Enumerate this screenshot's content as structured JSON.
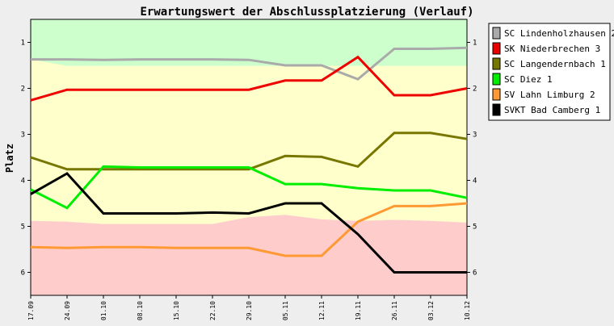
{
  "chart_data": {
    "type": "line",
    "title": "Erwartungswert der Abschlussplatzierung (Verlauf)",
    "ylabel": "Platz",
    "xlabel": "",
    "ylim": [
      0.5,
      6.5
    ],
    "y_inverted": true,
    "yticks": [
      1,
      2,
      3,
      4,
      5,
      6
    ],
    "x": [
      "17.09",
      "24.09",
      "01.10",
      "08.10",
      "15.10",
      "22.10",
      "29.10",
      "05.11",
      "12.11",
      "19.11",
      "26.11",
      "03.12",
      "10.12"
    ],
    "legend_position": "right",
    "background_bands": [
      {
        "color": "#ccffcc",
        "upper": [
          1.37,
          1.51,
          1.51,
          1.51,
          1.51,
          1.51,
          1.51,
          1.51,
          1.51,
          1.51,
          1.51,
          1.51,
          1.51
        ]
      },
      {
        "color": "#ffffcc",
        "upper": [
          4.88,
          4.9,
          4.95,
          4.95,
          4.95,
          4.95,
          4.8,
          4.75,
          4.85,
          4.88,
          4.86,
          4.88,
          4.92
        ]
      },
      {
        "color": "#ffcccc",
        "upper": [
          6.5,
          6.5,
          6.5,
          6.5,
          6.5,
          6.5,
          6.5,
          6.5,
          6.5,
          6.5,
          6.5,
          6.5,
          6.5
        ]
      }
    ],
    "series": [
      {
        "name": "SC Lindenholzhausen 2",
        "color": "#aaaaaa",
        "values": [
          1.37,
          1.37,
          1.38,
          1.37,
          1.37,
          1.37,
          1.38,
          1.5,
          1.5,
          1.8,
          1.14,
          1.14,
          1.12
        ]
      },
      {
        "name": "SK Niederbrechen 3",
        "color": "#ee0000",
        "values": [
          2.26,
          2.03,
          2.03,
          2.03,
          2.03,
          2.03,
          2.03,
          1.83,
          1.83,
          1.32,
          2.15,
          2.15,
          2.0
        ]
      },
      {
        "name": "SC Langendernbach 1",
        "color": "#777700",
        "values": [
          3.5,
          3.76,
          3.76,
          3.76,
          3.76,
          3.76,
          3.76,
          3.47,
          3.49,
          3.7,
          2.97,
          2.97,
          3.1
        ]
      },
      {
        "name": "SC Diez 1",
        "color": "#00ee00",
        "values": [
          4.2,
          4.6,
          3.7,
          3.72,
          3.72,
          3.72,
          3.72,
          4.08,
          4.08,
          4.17,
          4.22,
          4.22,
          4.38
        ]
      },
      {
        "name": "SV Lahn Limburg 2",
        "color": "#ff9933",
        "values": [
          5.45,
          5.47,
          5.45,
          5.45,
          5.47,
          5.47,
          5.47,
          5.64,
          5.64,
          4.9,
          4.56,
          4.56,
          4.5
        ]
      },
      {
        "name": "SVKT Bad Camberg 1",
        "color": "#000000",
        "values": [
          4.3,
          3.85,
          4.72,
          4.72,
          4.72,
          4.7,
          4.72,
          4.5,
          4.5,
          5.17,
          6.0,
          6.0,
          6.0
        ]
      }
    ]
  }
}
